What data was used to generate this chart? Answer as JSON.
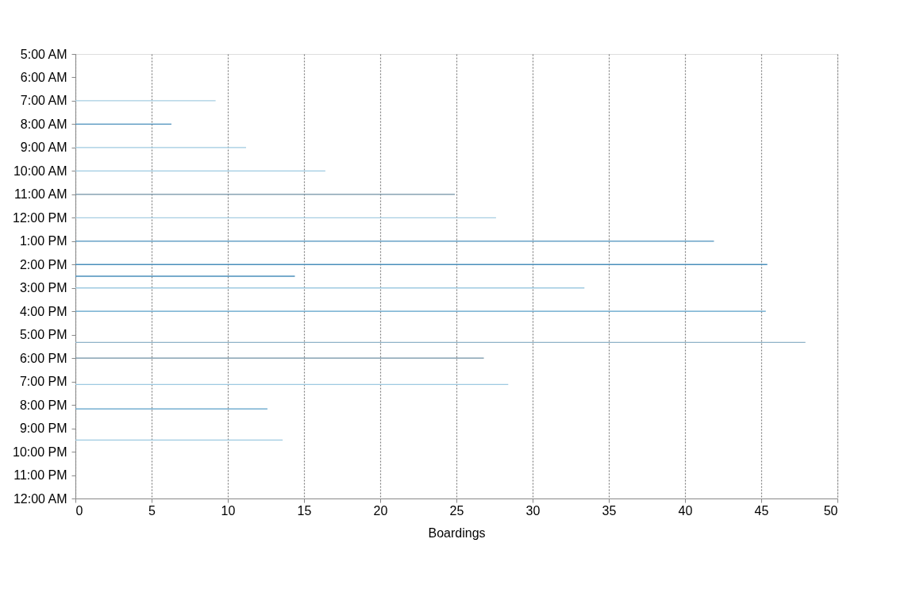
{
  "chart_data": {
    "type": "bar",
    "orientation": "horizontal",
    "xlabel": "Boardings",
    "x": [
      7,
      8,
      9,
      10,
      11,
      12,
      13,
      14,
      14.5,
      15,
      16,
      17.33,
      18,
      19.13,
      20.17,
      21.5
    ],
    "values": [
      9.2,
      6.3,
      11.2,
      16.4,
      24.9,
      27.6,
      41.9,
      45.4,
      14.4,
      33.4,
      45.3,
      47.9,
      26.8,
      28.4,
      12.6,
      13.6
    ],
    "colors": [
      "#a6cde2",
      "#4a8fbb",
      "#9ecae1",
      "#9ecae1",
      "#6f8fa3",
      "#a6cde2",
      "#4a8fbb",
      "#4a8fbb",
      "#4a8fbb",
      "#9ecae1",
      "#5a9fc8",
      "#8fb3c8",
      "#6f8fa3",
      "#9ecae1",
      "#5a9fc8",
      "#9ecae1"
    ],
    "xlim": [
      0,
      50
    ],
    "xticks": [
      0,
      5,
      10,
      15,
      20,
      25,
      30,
      35,
      40,
      45,
      50
    ],
    "ylim": [
      24,
      5
    ],
    "yticks": [
      {
        "value": 5,
        "label": "5:00 AM"
      },
      {
        "value": 6,
        "label": "6:00 AM"
      },
      {
        "value": 7,
        "label": "7:00 AM"
      },
      {
        "value": 8,
        "label": "8:00 AM"
      },
      {
        "value": 9,
        "label": "9:00 AM"
      },
      {
        "value": 10,
        "label": "10:00 AM"
      },
      {
        "value": 11,
        "label": "11:00 AM"
      },
      {
        "value": 12,
        "label": "12:00 PM"
      },
      {
        "value": 13,
        "label": "1:00 PM"
      },
      {
        "value": 14,
        "label": "2:00 PM"
      },
      {
        "value": 15,
        "label": "3:00 PM"
      },
      {
        "value": 16,
        "label": "4:00 PM"
      },
      {
        "value": 17,
        "label": "5:00 PM"
      },
      {
        "value": 18,
        "label": "6:00 PM"
      },
      {
        "value": 19,
        "label": "7:00 PM"
      },
      {
        "value": 20,
        "label": "8:00 PM"
      },
      {
        "value": 21,
        "label": "9:00 PM"
      },
      {
        "value": 22,
        "label": "10:00 PM"
      },
      {
        "value": 23,
        "label": "11:00 PM"
      },
      {
        "value": 24,
        "label": "12:00 AM"
      }
    ],
    "grid": "x"
  }
}
